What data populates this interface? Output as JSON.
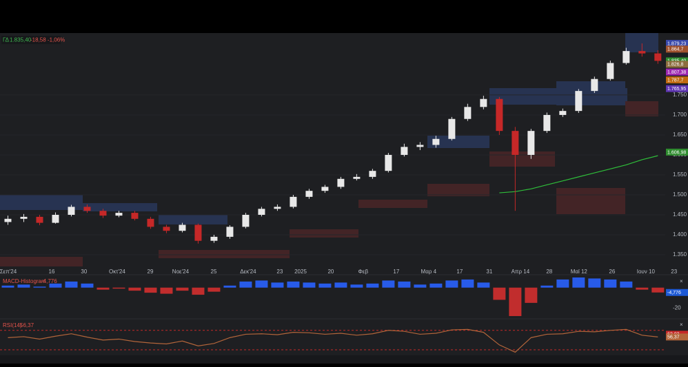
{
  "chart_data": [
    {
      "type": "candlestick",
      "legend": {
        "symbol": "ΓΔ",
        "last": "1.835,40",
        "change": "-18,58 -1,06%"
      },
      "x": [
        0.5,
        1.5,
        2.5,
        3.5,
        4.5,
        5.5,
        6.5,
        7.5,
        8.5,
        9.5,
        10.5,
        11.5,
        12.5,
        13.5,
        14.5,
        15.5,
        16.5,
        17.5,
        18.5,
        19.5,
        20.5,
        21.5,
        22.5,
        23.5,
        24.5,
        25.5,
        26.5,
        27.5,
        28.5,
        29.5,
        30.5,
        31.5,
        32.5,
        33.5,
        34.5,
        35.5,
        36.5,
        37.5,
        38.5,
        39.5,
        40.5,
        41.5
      ],
      "xlim": [
        0,
        43.4
      ],
      "xticks": [
        {
          "value": 0.52,
          "label": "Σεπ'24"
        },
        {
          "value": 3.26,
          "label": "16"
        },
        {
          "value": 5.3,
          "label": "30"
        },
        {
          "value": 7.39,
          "label": "Οκτ'24"
        },
        {
          "value": 9.48,
          "label": "29"
        },
        {
          "value": 11.39,
          "label": "Νοε'24"
        },
        {
          "value": 13.48,
          "label": "25"
        },
        {
          "value": 15.65,
          "label": "Δεκ'24"
        },
        {
          "value": 17.65,
          "label": "23"
        },
        {
          "value": 18.96,
          "label": "2025"
        },
        {
          "value": 20.87,
          "label": "20"
        },
        {
          "value": 22.91,
          "label": "Φεβ"
        },
        {
          "value": 25,
          "label": "17"
        },
        {
          "value": 27.04,
          "label": "Μαρ 4"
        },
        {
          "value": 29,
          "label": "17"
        },
        {
          "value": 30.87,
          "label": "31"
        },
        {
          "value": 32.83,
          "label": "Απρ 14"
        },
        {
          "value": 34.65,
          "label": "28"
        },
        {
          "value": 36.52,
          "label": "Μαϊ 12"
        },
        {
          "value": 38.61,
          "label": "26"
        },
        {
          "value": 40.74,
          "label": "Ιουν 10"
        },
        {
          "value": 42.52,
          "label": "23"
        }
      ],
      "ylim": [
        1319,
        1905
      ],
      "yticks": [
        {
          "value": 1350,
          "label": "1.350"
        },
        {
          "value": 1400,
          "label": "1.400"
        },
        {
          "value": 1450,
          "label": "1.450"
        },
        {
          "value": 1500,
          "label": "1.500"
        },
        {
          "value": 1550,
          "label": "1.550"
        },
        {
          "value": 1600,
          "label": "1.600"
        },
        {
          "value": 1650,
          "label": "1.650"
        },
        {
          "value": 1700,
          "label": "1.700"
        },
        {
          "value": 1750,
          "label": "1.750"
        }
      ],
      "up_color": "#e8e8e8",
      "down_color": "#c62828",
      "series": {
        "open": [
          1432,
          1440,
          1445,
          1430,
          1450,
          1470,
          1460,
          1448,
          1455,
          1440,
          1420,
          1410,
          1425,
          1385,
          1395,
          1420,
          1450,
          1465,
          1470,
          1495,
          1510,
          1520,
          1540,
          1545,
          1560,
          1600,
          1620,
          1625,
          1640,
          1690,
          1720,
          1740,
          1660,
          1600,
          1660,
          1700,
          1710,
          1760,
          1790,
          1830,
          1860,
          1854
        ],
        "high": [
          1448,
          1452,
          1450,
          1456,
          1475,
          1476,
          1465,
          1460,
          1460,
          1445,
          1425,
          1430,
          1428,
          1400,
          1424,
          1455,
          1470,
          1476,
          1500,
          1515,
          1525,
          1545,
          1552,
          1565,
          1605,
          1628,
          1632,
          1648,
          1695,
          1728,
          1748,
          1745,
          1670,
          1665,
          1706,
          1716,
          1765,
          1796,
          1836,
          1868,
          1879,
          1862
        ],
        "low": [
          1425,
          1432,
          1424,
          1428,
          1446,
          1455,
          1442,
          1444,
          1436,
          1415,
          1404,
          1406,
          1378,
          1380,
          1390,
          1416,
          1446,
          1460,
          1466,
          1490,
          1505,
          1515,
          1536,
          1540,
          1556,
          1596,
          1612,
          1618,
          1636,
          1685,
          1714,
          1650,
          1460,
          1590,
          1655,
          1695,
          1705,
          1755,
          1786,
          1826,
          1846,
          1828
        ],
        "close": [
          1440,
          1445,
          1430,
          1450,
          1470,
          1460,
          1448,
          1455,
          1440,
          1420,
          1410,
          1425,
          1385,
          1395,
          1420,
          1450,
          1465,
          1470,
          1495,
          1510,
          1520,
          1540,
          1545,
          1560,
          1600,
          1620,
          1625,
          1640,
          1690,
          1720,
          1740,
          1660,
          1600,
          1660,
          1700,
          1710,
          1760,
          1790,
          1830,
          1860,
          1854,
          1835.4
        ]
      },
      "overlays": [
        {
          "color": "#2fbf3a",
          "values": [
            null,
            null,
            null,
            null,
            null,
            null,
            null,
            null,
            null,
            null,
            null,
            null,
            null,
            null,
            null,
            null,
            null,
            null,
            null,
            null,
            null,
            null,
            null,
            null,
            null,
            null,
            null,
            null,
            null,
            null,
            null,
            1505,
            1508,
            1515,
            1525,
            1535,
            1545,
            1555,
            1565,
            1575,
            1588,
            1598
          ]
        }
      ],
      "price_tags": [
        {
          "value": 1879.23,
          "label": "1.879,23",
          "color": "#3949ab"
        },
        {
          "value": 1864.7,
          "label": "1.864,7",
          "color": "#a0522d"
        },
        {
          "value": 1835.4,
          "label": "1.835,40",
          "color": "#2e8b2e"
        },
        {
          "value": 1826.8,
          "label": "1.826,8",
          "color": "#8d6e3f"
        },
        {
          "value": 1807.38,
          "label": "1.807,38",
          "color": "#9c27b0"
        },
        {
          "value": 1787.7,
          "label": "1.787,7",
          "color": "#c06a10"
        },
        {
          "value": 1765.95,
          "label": "1.765,95",
          "color": "#5e35b1"
        },
        {
          "value": 1606.98,
          "label": "1.606,98",
          "color": "#2e8b2e"
        }
      ]
    },
    {
      "type": "histogram",
      "title": "MACD-Histogram",
      "legend_value": "-4,776",
      "ylim": [
        -30,
        12
      ],
      "yticks": [
        -20
      ],
      "up_color": "#2962ff",
      "down_color": "#d32f2f",
      "values": [
        2,
        3,
        1,
        4,
        6,
        4,
        -2,
        -1,
        -3,
        -5,
        -6,
        -3,
        -7,
        -4,
        2,
        6,
        7,
        5,
        6,
        5,
        4,
        5,
        3,
        4,
        7,
        6,
        3,
        4,
        7,
        8,
        5,
        -12,
        -28,
        -15,
        2,
        8,
        10,
        9,
        8,
        6,
        -2,
        -4.776
      ],
      "price_tags": [
        {
          "value": -4.776,
          "label": "-4,776",
          "color": "#1e5ad6"
        }
      ]
    },
    {
      "type": "line",
      "title": "RSI(14)",
      "legend_value": "56,37",
      "ylim": [
        20,
        91
      ],
      "levels": [
        70,
        30
      ],
      "color": "#b3653a",
      "values": [
        55,
        57,
        52,
        58,
        63,
        56,
        50,
        52,
        47,
        44,
        42,
        48,
        38,
        43,
        55,
        62,
        63,
        61,
        66,
        65,
        62,
        64,
        60,
        63,
        70,
        68,
        62,
        64,
        71,
        72,
        66,
        40,
        25,
        55,
        62,
        63,
        68,
        67,
        70,
        72,
        60,
        56.37
      ],
      "price_tags": [
        {
          "value": 62.03,
          "label": "62,03",
          "color": "#c62828"
        },
        {
          "value": 56.37,
          "label": "56,37",
          "color": "#b3653a"
        }
      ]
    }
  ]
}
